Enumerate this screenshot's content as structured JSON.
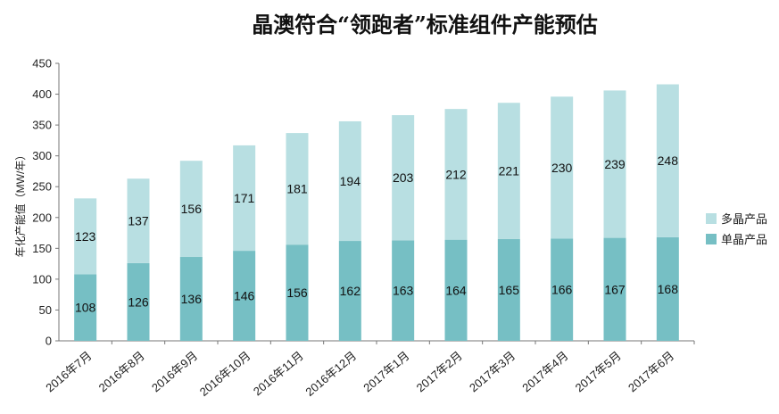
{
  "chart_data": {
    "type": "bar",
    "stacked": true,
    "title": "晶澳符合“领跑者”标准组件产能预估",
    "ylabel": "年化产能值（MW/年）",
    "xlabel": "",
    "ylim": [
      0,
      450
    ],
    "yticks": [
      0,
      50,
      100,
      150,
      200,
      250,
      300,
      350,
      400,
      450
    ],
    "grid": false,
    "legend_position": "right",
    "categories": [
      "2016年7月",
      "2016年8月",
      "2016年9月",
      "2016年10月",
      "2016年11月",
      "2016年12月",
      "2017年1月",
      "2017年2月",
      "2017年3月",
      "2017年4月",
      "2017年5月",
      "2017年6月"
    ],
    "series": [
      {
        "name": "单晶产品",
        "color": "#76bfc4",
        "values": [
          108,
          126,
          136,
          146,
          156,
          162,
          163,
          164,
          165,
          166,
          167,
          168
        ]
      },
      {
        "name": "多晶产品",
        "color": "#b8dfe2",
        "values": [
          123,
          137,
          156,
          171,
          181,
          194,
          203,
          212,
          221,
          230,
          239,
          248
        ]
      }
    ],
    "legend_order": [
      1,
      0
    ]
  }
}
